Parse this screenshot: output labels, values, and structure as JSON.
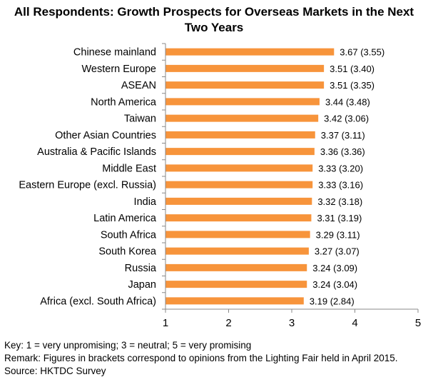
{
  "chart_data": {
    "type": "bar",
    "orientation": "horizontal",
    "title_line1": "All Respondents: Growth Prospects for Overseas Markets in the Next",
    "title_line2": "Two Years",
    "xlim": [
      1,
      5
    ],
    "xticks": [
      "1",
      "2",
      "3",
      "4",
      "5"
    ],
    "bar_color": "#F7943B",
    "categories": [
      "Chinese mainland",
      "Western Europe",
      "ASEAN",
      "North America",
      "Taiwan",
      "Other Asian Countries",
      "Australia & Pacific Islands",
      "Middle East",
      "Eastern Europe (excl. Russia)",
      "India",
      "Latin America",
      "South Africa",
      "South Korea",
      "Russia",
      "Japan",
      "Africa (excl. South Africa)"
    ],
    "values": [
      3.67,
      3.51,
      3.51,
      3.44,
      3.42,
      3.37,
      3.36,
      3.33,
      3.33,
      3.32,
      3.31,
      3.29,
      3.27,
      3.24,
      3.24,
      3.19
    ],
    "data_labels": [
      "3.67 (3.55)",
      "3.51 (3.40)",
      "3.51 (3.35)",
      "3.44 (3.48)",
      "3.42 (3.06)",
      "3.37 (3.11)",
      "3.36 (3.36)",
      "3.33 (3.20)",
      "3.33 (3.16)",
      "3.32 (3.18)",
      "3.31 (3.19)",
      "3.29 (3.11)",
      "3.27 (3.07)",
      "3.24 (3.09)",
      "3.24 (3.04)",
      "3.19 (2.84)"
    ],
    "grid": false
  },
  "notes": {
    "key": "Key: 1 = very unpromising; 3 = neutral; 5 = very promising",
    "remark": "Remark: Figures in brackets correspond to opinions from the Lighting Fair held in April 2015.",
    "source": "Source: HKTDC Survey"
  }
}
